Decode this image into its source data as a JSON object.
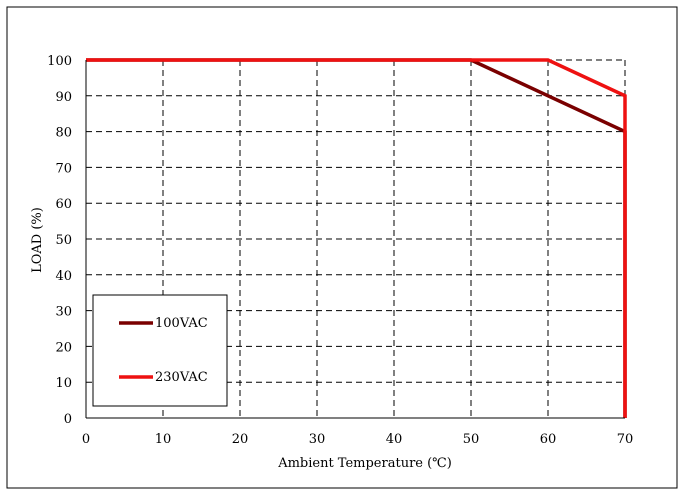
{
  "chart_data": {
    "type": "line",
    "title": "",
    "xlabel": "Ambient Temperature (℃)",
    "ylabel": "LOAD (%)",
    "xlim": [
      0,
      70
    ],
    "ylim": [
      0,
      100
    ],
    "x_ticks": [
      "0",
      "10",
      "20",
      "30",
      "40",
      "50",
      "60",
      "70"
    ],
    "y_ticks": [
      "0",
      "10",
      "20",
      "30",
      "40",
      "50",
      "60",
      "70",
      "80",
      "90",
      "100"
    ],
    "grid": true,
    "legend_position": "bottom-left",
    "series": [
      {
        "name": "100VAC",
        "color": "#7a0000",
        "x": [
          0,
          50,
          70,
          70
        ],
        "y": [
          100,
          100,
          80,
          0
        ]
      },
      {
        "name": "230VAC",
        "color": "#ee1111",
        "x": [
          0,
          60,
          70,
          70
        ],
        "y": [
          100,
          100,
          90,
          0
        ]
      }
    ]
  }
}
